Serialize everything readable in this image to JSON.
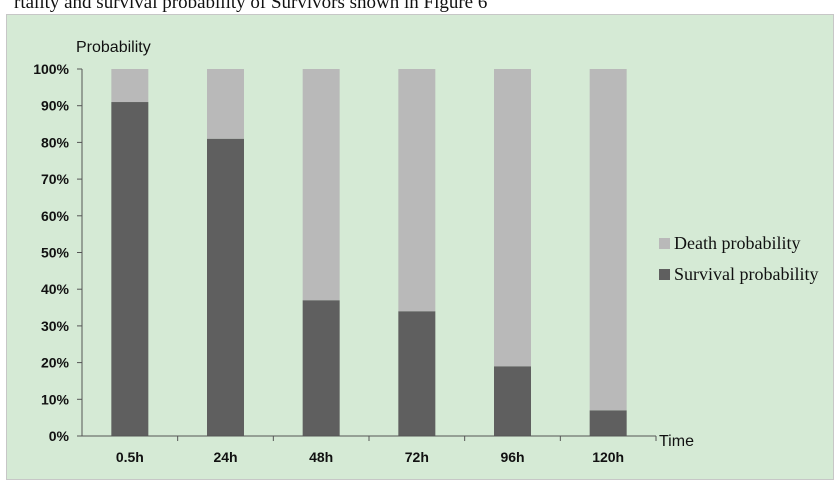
{
  "caption_fragment": "rtality and survival probability of Survivors shown in Figure 6",
  "chart_data": {
    "type": "bar",
    "stacked": true,
    "categories": [
      "0.5h",
      "24h",
      "48h",
      "72h",
      "96h",
      "120h"
    ],
    "series": [
      {
        "name": "Survival probability",
        "values": [
          91,
          81,
          37,
          34,
          19,
          7
        ],
        "color": "#5f5f5f"
      },
      {
        "name": "Death probability",
        "values": [
          9,
          19,
          63,
          66,
          81,
          93
        ],
        "color": "#b9b9b9"
      }
    ],
    "ylabel": "Probability",
    "xlabel": "Time",
    "ylim": [
      0,
      100
    ],
    "yticks": [
      "0%",
      "10%",
      "20%",
      "30%",
      "40%",
      "50%",
      "60%",
      "70%",
      "80%",
      "90%",
      "100%"
    ],
    "legend": {
      "placement": "right",
      "entries": [
        "Death probability",
        "Survival probability"
      ]
    },
    "grid": false
  }
}
